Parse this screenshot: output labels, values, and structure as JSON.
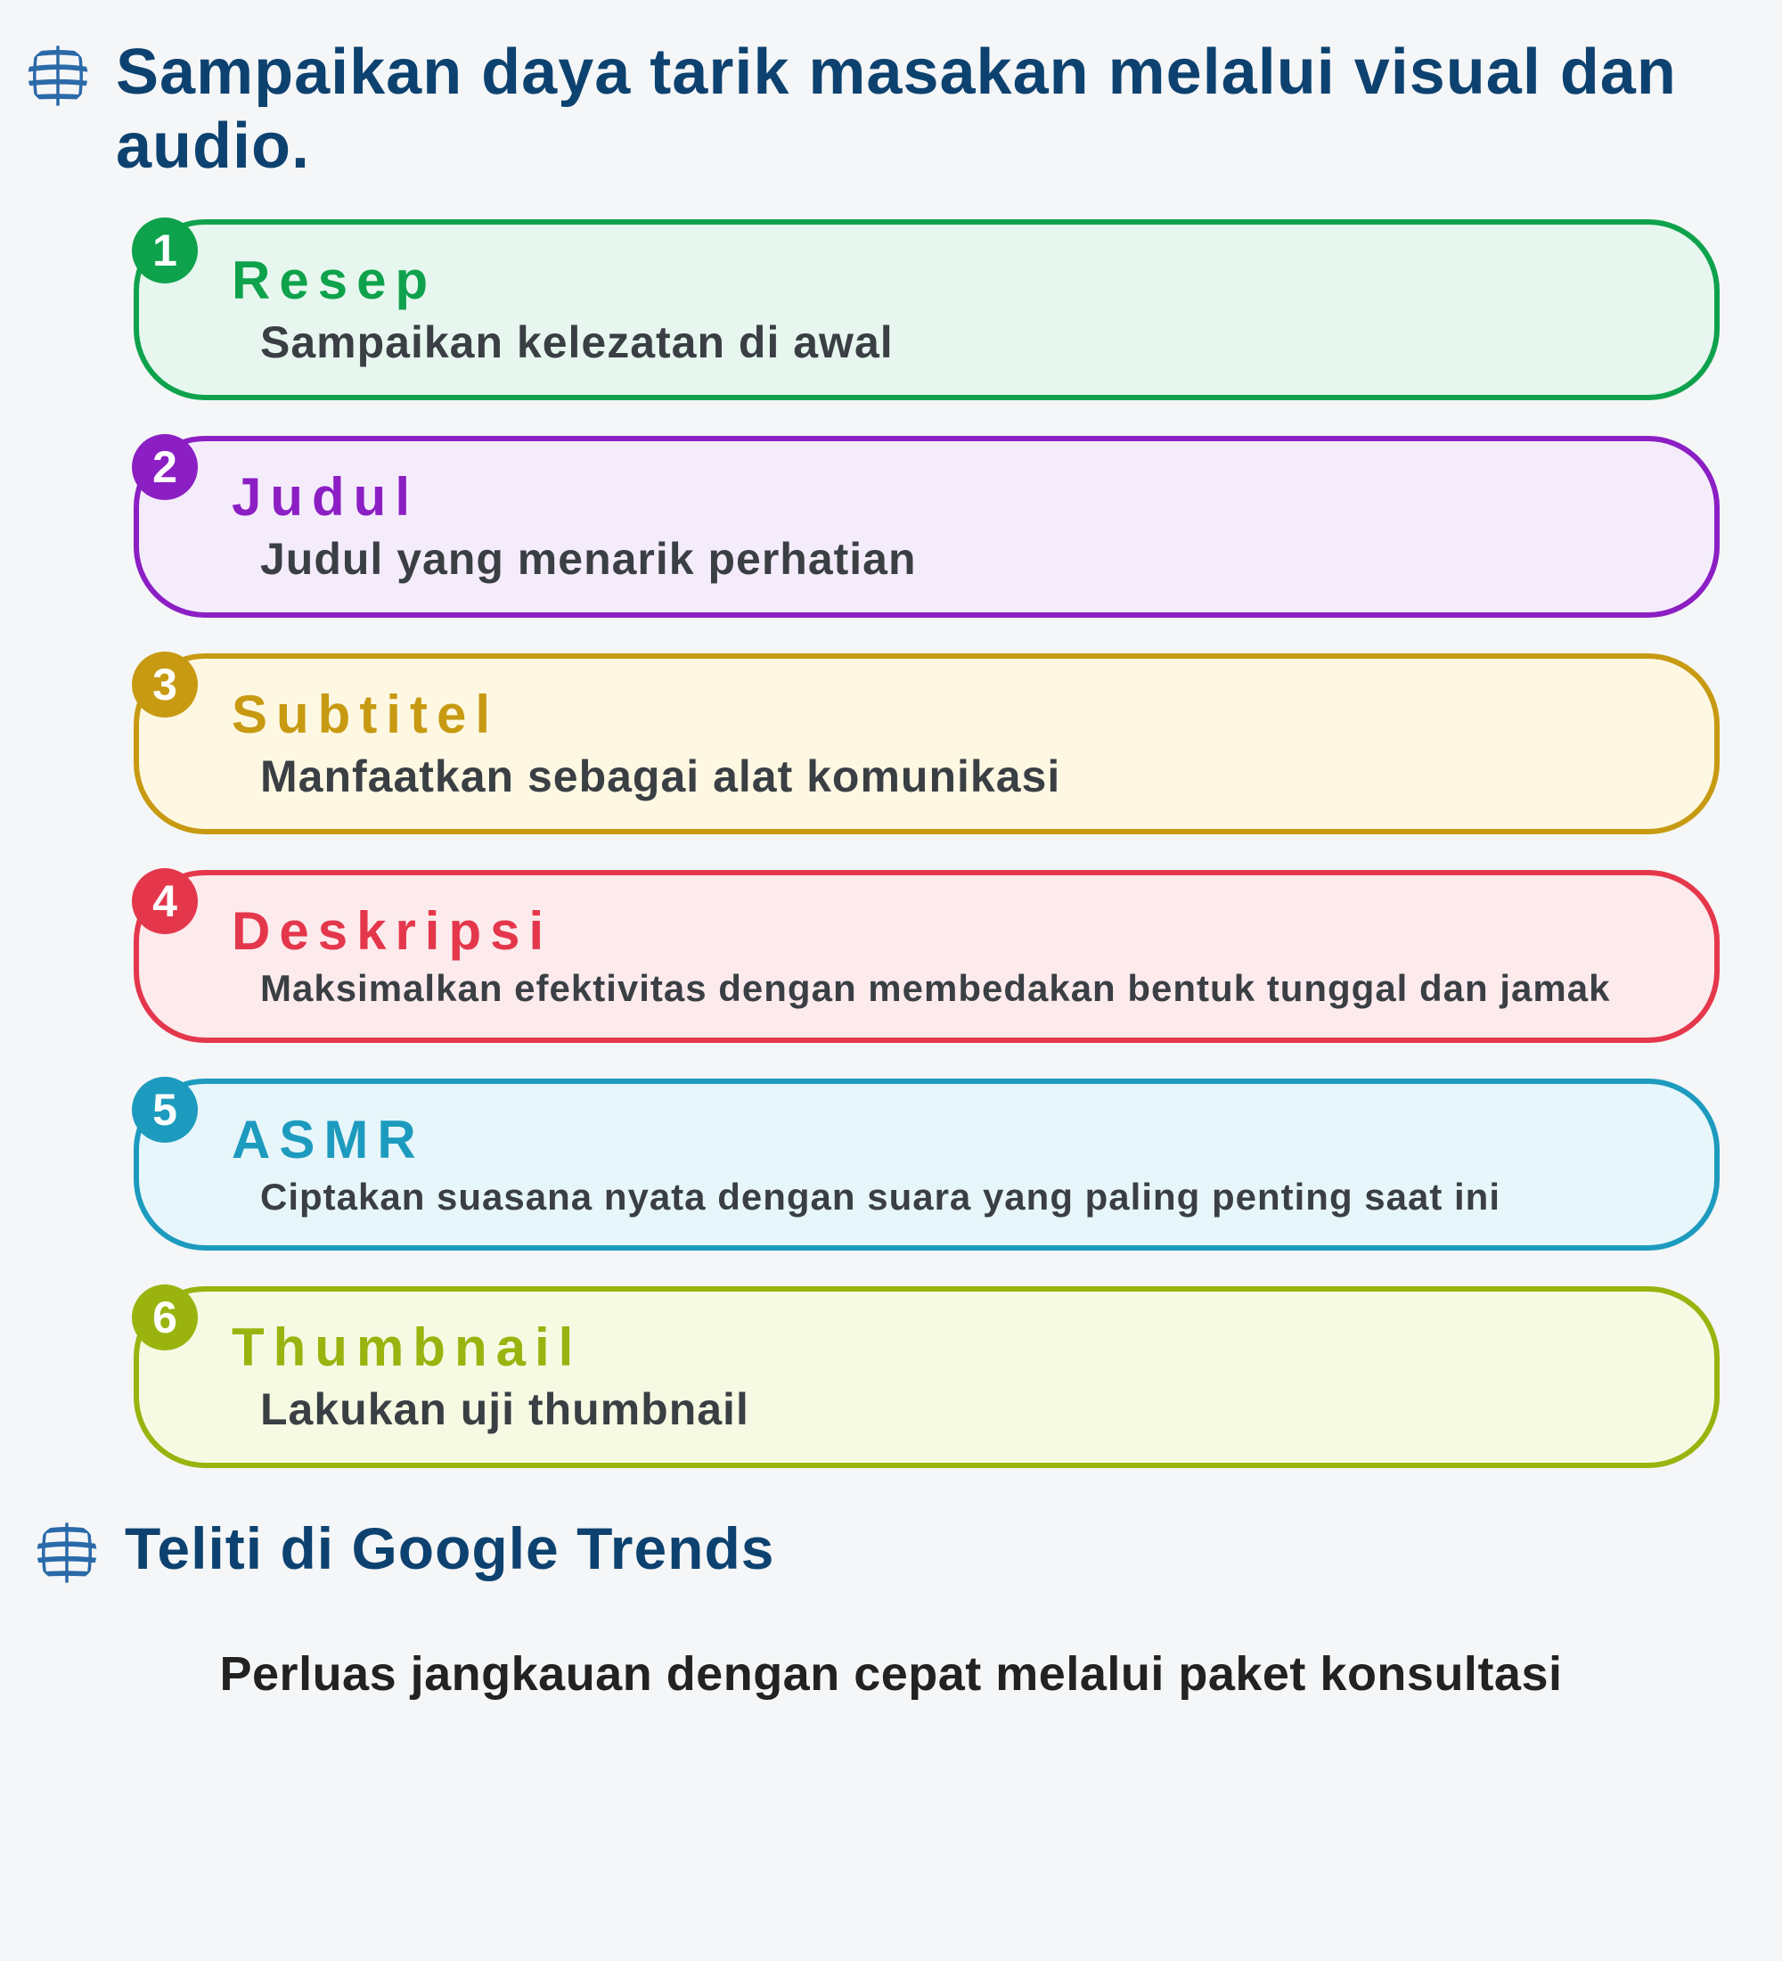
{
  "header": {
    "title": "Sampaikan daya tarik masakan melalui visual dan audio.",
    "title_color": "#0d4270",
    "title_fontsize": 72
  },
  "globe_icon": {
    "stroke_color": "#2b6aa9",
    "fill_color": "#2b6aa9"
  },
  "items": [
    {
      "num": "1",
      "title": "Resep",
      "desc": "Sampaikan kelezatan di awal",
      "border_color": "#0fa24c",
      "bg_color": "#e7f7ef",
      "title_color": "#0fa24c",
      "badge_bg": "#0fa24c",
      "desc_small": false
    },
    {
      "num": "2",
      "title": "Judul",
      "desc": "Judul yang menarik perhatian",
      "border_color": "#8b1fc4",
      "bg_color": "#f5ecfb",
      "title_color": "#8b1fc4",
      "badge_bg": "#8b1fc4",
      "desc_small": false
    },
    {
      "num": "3",
      "title": "Subtitel",
      "desc": "Manfaatkan sebagai alat komunikasi",
      "border_color": "#c79a12",
      "bg_color": "#fef8e3",
      "title_color": "#c79a12",
      "badge_bg": "#c79a12",
      "desc_small": false
    },
    {
      "num": "4",
      "title": "Deskripsi",
      "desc": "Maksimalkan efektivitas dengan membedakan bentuk tunggal dan jamak",
      "border_color": "#e4374c",
      "bg_color": "#fceaec",
      "title_color": "#e4374c",
      "badge_bg": "#e4374c",
      "desc_small": true
    },
    {
      "num": "5",
      "title": "ASMR",
      "desc": "Ciptakan suasana nyata dengan suara yang paling penting saat ini",
      "border_color": "#1d9bbf",
      "bg_color": "#e7f6fb",
      "title_color": "#1d9bbf",
      "badge_bg": "#1d9bbf",
      "desc_small": true
    },
    {
      "num": "6",
      "title": "Thumbnail",
      "desc": "Lakukan uji thumbnail",
      "border_color": "#9ab30f",
      "bg_color": "#f7fae3",
      "title_color": "#9ab30f",
      "badge_bg": "#9ab30f",
      "desc_small": false
    }
  ],
  "section2": {
    "title": "Teliti di Google Trends",
    "title_color": "#0d4270"
  },
  "bottom": {
    "text": "Perluas jangkauan dengan cepat melalui paket konsultasi",
    "color": "#222222"
  },
  "layout": {
    "background": "#f5f6f7",
    "item_border_radius": 80,
    "item_border_width": 6
  }
}
